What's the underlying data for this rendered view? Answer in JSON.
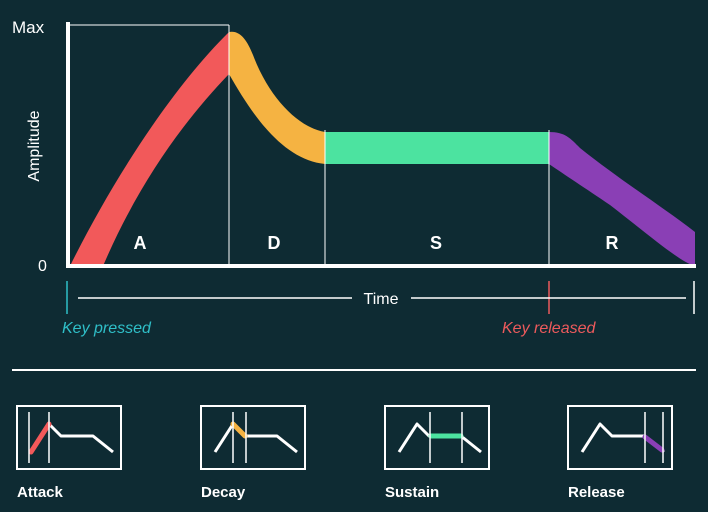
{
  "axis": {
    "y_max_label": "Max",
    "y_zero_label": "0",
    "y_title": "Amplitude",
    "x_title": "Time"
  },
  "phases": [
    {
      "letter": "A",
      "color": "#f2595a"
    },
    {
      "letter": "D",
      "color": "#f5b342"
    },
    {
      "letter": "S",
      "color": "#4ce3a0"
    },
    {
      "letter": "R",
      "color": "#8a3fb5"
    }
  ],
  "events": {
    "key_pressed": "Key pressed",
    "key_released": "Key released",
    "pressed_color": "#2fbfc8",
    "released_color": "#ec5a5c"
  },
  "stages": [
    {
      "label": "Attack",
      "highlight": "attack",
      "color": "#f2595a"
    },
    {
      "label": "Decay",
      "highlight": "decay",
      "color": "#f5b342"
    },
    {
      "label": "Sustain",
      "highlight": "sustain",
      "color": "#4ce3a0"
    },
    {
      "label": "Release",
      "highlight": "release",
      "color": "#8a3fb5"
    }
  ]
}
